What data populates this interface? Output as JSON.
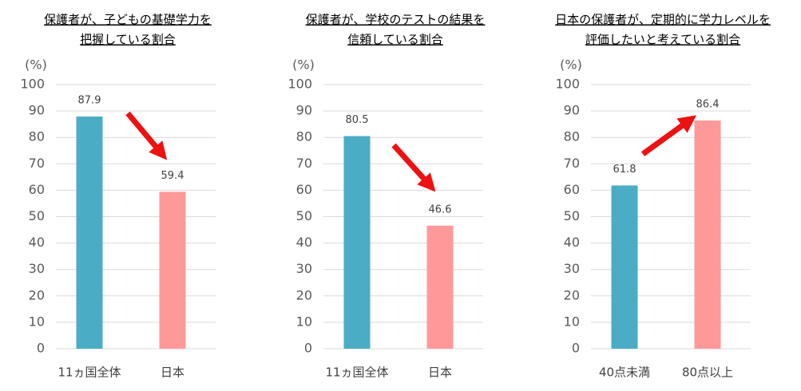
{
  "chart_data": [
    {
      "type": "bar",
      "title": [
        "保護者が、子どもの基礎学力を",
        "把握している割合"
      ],
      "ylabel": "(%)",
      "categories": [
        "11ヵ国全体",
        "日本"
      ],
      "values": [
        87.9,
        59.4
      ],
      "colors": [
        "#4bacc6",
        "#ff9999"
      ],
      "ylim": [
        0,
        100
      ],
      "yticks": [
        0,
        10,
        20,
        30,
        40,
        50,
        60,
        70,
        80,
        90,
        100
      ],
      "grid": true
    },
    {
      "type": "bar",
      "title": [
        "保護者が、学校のテストの結果を",
        "信頼している割合"
      ],
      "ylabel": "(%)",
      "categories": [
        "11ヵ国全体",
        "日本"
      ],
      "values": [
        80.5,
        46.6
      ],
      "colors": [
        "#4bacc6",
        "#ff9999"
      ],
      "ylim": [
        0,
        100
      ],
      "yticks": [
        0,
        10,
        20,
        30,
        40,
        50,
        60,
        70,
        80,
        90,
        100
      ],
      "grid": true
    },
    {
      "type": "bar",
      "title": [
        "日本の保護者が、定期的に学力レベルを",
        "評価したいと考えている割合"
      ],
      "ylabel": "(%)",
      "categories": [
        "40点未満",
        "80点以上"
      ],
      "values": [
        61.8,
        86.4
      ],
      "colors": [
        "#4bacc6",
        "#ff9999"
      ],
      "ylim": [
        0,
        100
      ],
      "yticks": [
        0,
        10,
        20,
        30,
        40,
        50,
        60,
        70,
        80,
        90,
        100
      ],
      "grid": true
    }
  ]
}
